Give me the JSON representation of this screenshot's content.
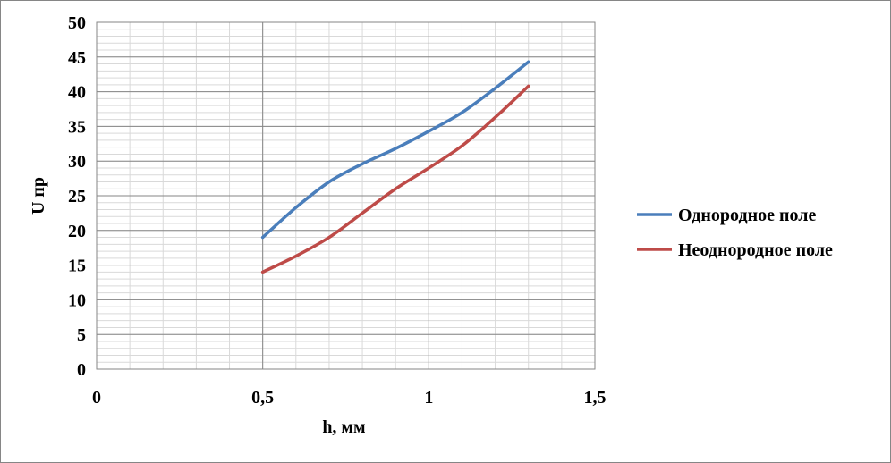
{
  "chart_data": {
    "type": "line",
    "title": "",
    "xlabel": "h, мм",
    "ylabel": "U пр",
    "xlim": [
      0,
      1.5
    ],
    "ylim": [
      0,
      50
    ],
    "x_ticks": [
      "0",
      "0,5",
      "1",
      "1,5"
    ],
    "x_tick_values": [
      0,
      0.5,
      1,
      1.5
    ],
    "y_ticks": [
      "0",
      "5",
      "10",
      "15",
      "20",
      "25",
      "30",
      "35",
      "40",
      "45",
      "50"
    ],
    "y_tick_values": [
      0,
      5,
      10,
      15,
      20,
      25,
      30,
      35,
      40,
      45,
      50
    ],
    "grid": true,
    "legend_position": "right",
    "series": [
      {
        "name": "Однородное поле",
        "color": "#4a7ebb",
        "x": [
          0.5,
          0.6,
          0.7,
          0.8,
          0.9,
          1.0,
          1.1,
          1.2,
          1.3
        ],
        "y": [
          19,
          23.3,
          27,
          29.6,
          31.8,
          34.3,
          37,
          40.5,
          44.3
        ]
      },
      {
        "name": "Неоднородное поле",
        "color": "#be4b48",
        "x": [
          0.5,
          0.6,
          0.7,
          0.8,
          0.9,
          1.0,
          1.1,
          1.2,
          1.3
        ],
        "y": [
          14,
          16.3,
          19,
          22.5,
          26,
          29,
          32.2,
          36.3,
          40.8
        ]
      }
    ]
  }
}
